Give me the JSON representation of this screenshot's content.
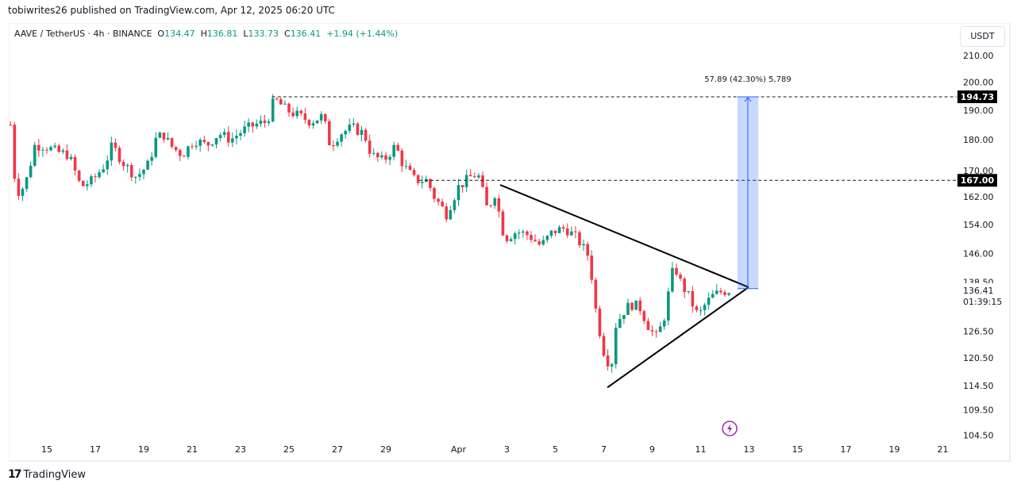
{
  "header": {
    "published": "tobiwrites26 published on TradingView.com, Apr 12, 2025 06:20 UTC"
  },
  "legend": {
    "symbol": "AAVE / TetherUS · 4h · BINANCE",
    "o_label": "O",
    "o": "134.47",
    "h_label": "H",
    "h": "136.81",
    "l_label": "L",
    "l": "133.73",
    "c_label": "C",
    "c": "136.41",
    "change": "+1.94 (+1.44%)"
  },
  "currency": "USDT",
  "brand": "TradingView",
  "colors": {
    "up": "#089981",
    "down": "#f23645",
    "measure": "#2962ff",
    "icon": "#9c27b0"
  },
  "chart_data": {
    "type": "candlestick",
    "scale": "log",
    "ylim": [
      102,
      214
    ],
    "xlim_days": [
      12.75,
      52.1
    ],
    "y_ticks": [
      "210.00",
      "200.00",
      "190.00",
      "180.00",
      "170.00",
      "162.00",
      "154.00",
      "146.00",
      "138.50",
      "126.50",
      "120.50",
      "114.50",
      "109.50",
      "104.50"
    ],
    "x_ticks": [
      {
        "t": 15,
        "label": "15"
      },
      {
        "t": 17,
        "label": "17"
      },
      {
        "t": 19,
        "label": "19"
      },
      {
        "t": 21,
        "label": "21"
      },
      {
        "t": 23,
        "label": "23"
      },
      {
        "t": 25,
        "label": "25"
      },
      {
        "t": 27,
        "label": "27"
      },
      {
        "t": 29,
        "label": "29"
      },
      {
        "t": 32,
        "label": "Apr"
      },
      {
        "t": 34,
        "label": "3"
      },
      {
        "t": 36,
        "label": "5"
      },
      {
        "t": 38,
        "label": "7"
      },
      {
        "t": 40,
        "label": "9"
      },
      {
        "t": 42,
        "label": "11"
      },
      {
        "t": 44,
        "label": "13"
      },
      {
        "t": 46,
        "label": "15"
      },
      {
        "t": 48,
        "label": "17"
      },
      {
        "t": 50,
        "label": "19"
      },
      {
        "t": 52,
        "label": "21"
      }
    ],
    "close_anchors": [
      [
        13.5,
        185
      ],
      [
        13.7,
        165
      ],
      [
        13.9,
        163
      ],
      [
        14.2,
        168
      ],
      [
        14.5,
        178
      ],
      [
        14.9,
        178
      ],
      [
        15.4,
        176
      ],
      [
        15.9,
        175
      ],
      [
        16.4,
        165
      ],
      [
        16.9,
        167
      ],
      [
        17.4,
        172
      ],
      [
        17.7,
        178
      ],
      [
        18.2,
        172
      ],
      [
        18.7,
        168
      ],
      [
        19.2,
        172
      ],
      [
        19.5,
        180
      ],
      [
        19.8,
        182
      ],
      [
        20.1,
        178
      ],
      [
        20.6,
        175
      ],
      [
        21.1,
        180
      ],
      [
        21.6,
        178
      ],
      [
        22.1,
        182
      ],
      [
        22.6,
        180
      ],
      [
        23.1,
        183
      ],
      [
        23.6,
        185
      ],
      [
        24.1,
        186
      ],
      [
        24.4,
        194
      ],
      [
        24.9,
        190
      ],
      [
        25.4,
        188
      ],
      [
        25.9,
        186
      ],
      [
        26.4,
        188
      ],
      [
        26.7,
        178
      ],
      [
        27.1,
        182
      ],
      [
        27.6,
        184
      ],
      [
        28.1,
        182
      ],
      [
        28.4,
        175
      ],
      [
        28.9,
        173
      ],
      [
        29.4,
        178
      ],
      [
        29.7,
        172
      ],
      [
        30.2,
        167
      ],
      [
        30.7,
        167
      ],
      [
        31.0,
        162
      ],
      [
        31.5,
        157
      ],
      [
        32.0,
        165
      ],
      [
        32.5,
        168
      ],
      [
        32.8,
        169
      ],
      [
        33.2,
        158
      ],
      [
        33.5,
        163
      ],
      [
        33.9,
        150
      ],
      [
        34.4,
        152
      ],
      [
        34.9,
        151
      ],
      [
        35.4,
        148
      ],
      [
        35.9,
        152
      ],
      [
        36.4,
        153
      ],
      [
        36.9,
        150
      ],
      [
        37.4,
        145
      ],
      [
        37.7,
        130
      ],
      [
        38.0,
        122
      ],
      [
        38.3,
        118
      ],
      [
        38.5,
        128
      ],
      [
        38.9,
        132
      ],
      [
        39.2,
        133
      ],
      [
        39.5,
        132
      ],
      [
        39.9,
        127
      ],
      [
        40.2,
        125
      ],
      [
        40.5,
        130
      ],
      [
        40.9,
        143
      ],
      [
        41.2,
        138
      ],
      [
        41.5,
        135
      ],
      [
        41.9,
        130
      ],
      [
        42.2,
        133
      ],
      [
        42.5,
        135
      ],
      [
        42.8,
        136
      ],
      [
        43.2,
        136.41
      ]
    ],
    "last_price": "136.41",
    "countdown": "01:39:15",
    "levels": [
      {
        "price": 194.73,
        "label": "194.73",
        "from_t": 24.3
      },
      {
        "price": 167,
        "label": "167.00",
        "from_t": 30.38
      }
    ],
    "triangle": {
      "upper": [
        [
          33.72,
          165.6
        ],
        [
          43.98,
          137.2
        ]
      ],
      "lower": [
        [
          38.15,
          114.1
        ],
        [
          43.98,
          137.2
        ]
      ]
    },
    "measure": {
      "from_price": 136.84,
      "to_price": 194.73,
      "t0": 43.52,
      "t1": 44.38,
      "label": "57.89 (42.30%) 5,789"
    }
  }
}
